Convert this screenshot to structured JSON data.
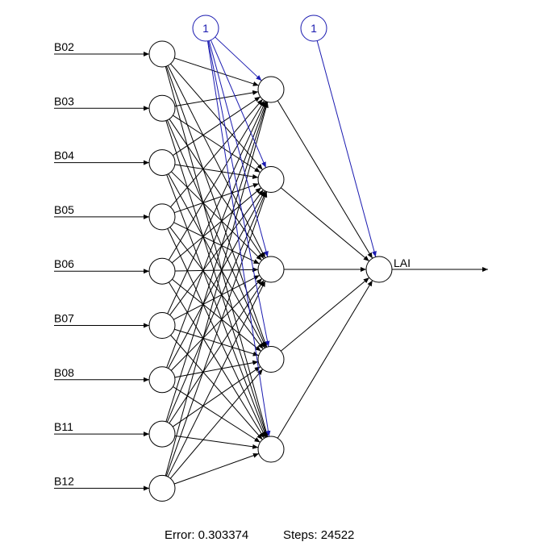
{
  "network": {
    "inputs": [
      "B02",
      "B03",
      "B04",
      "B05",
      "B06",
      "B07",
      "B08",
      "B11",
      "B12"
    ],
    "hidden_count": 5,
    "output": "LAI",
    "bias_label": "1",
    "colors": {
      "weight_line": "#000000",
      "bias_line": "#1a1ab0",
      "node_stroke": "#000000"
    }
  },
  "footer": {
    "error_label": "Error: 0.303374",
    "steps_label": "Steps: 24522"
  }
}
